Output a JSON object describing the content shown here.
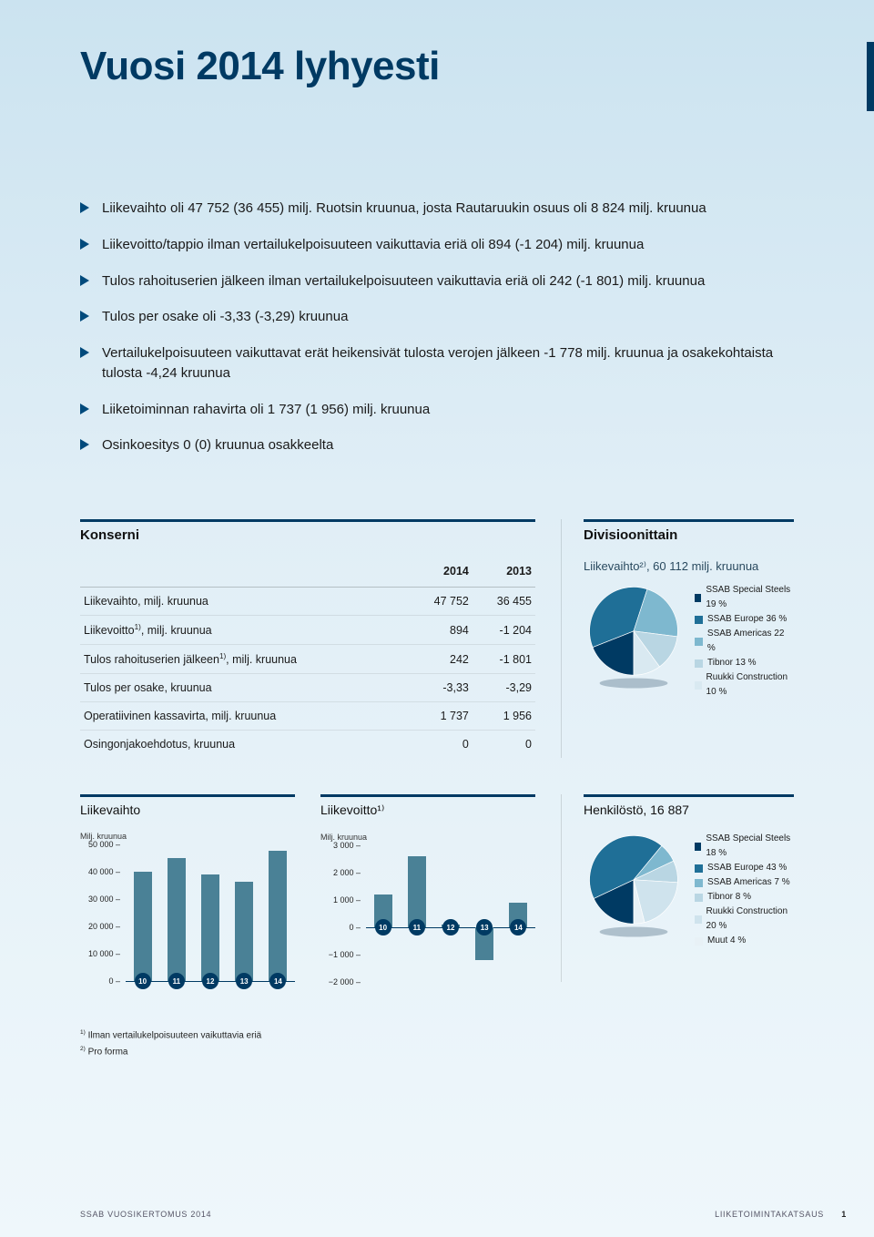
{
  "title": "Vuosi 2014 lyhyesti",
  "bullets": [
    "Liikevaihto oli 47 752 (36 455) milj. Ruotsin kruunua, josta Rautaruukin osuus oli 8 824 milj. kruunua",
    "Liikevoitto/tappio ilman vertailukelpoisuuteen vaikuttavia eriä oli 894 (-1 204) milj. kruunua",
    "Tulos rahoituserien jälkeen ilman vertailukelpoisuuteen vaikuttavia eriä oli 242 (-1 801) milj. kruunua",
    "Tulos per osake oli -3,33 (-3,29) kruunua",
    "Vertailukelpoisuuteen vaikuttavat erät heikensivät tulosta verojen jälkeen -1 778 milj. kruunua ja osakekohtaista tulosta -4,24 kruunua",
    "Liiketoiminnan rahavirta oli 1 737 (1 956) milj. kruunua",
    "Osinkoesitys 0 (0) kruunua osakkeelta"
  ],
  "table": {
    "heading": "Konserni",
    "col1": "2014",
    "col2": "2013",
    "rows": [
      {
        "label": "Liikevaihto, milj. kruunua",
        "v1": "47 752",
        "v2": "36 455"
      },
      {
        "label": "Liikevoitto<sup>1)</sup>, milj. kruunua",
        "v1": "894",
        "v2": "-1 204"
      },
      {
        "label": "Tulos rahoituserien jälkeen<sup>1)</sup>, milj. kruunua",
        "v1": "242",
        "v2": "-1 801"
      },
      {
        "label": "Tulos per osake, kruunua",
        "v1": "-3,33",
        "v2": "-3,29"
      },
      {
        "label": "Operatiivinen kassavirta, milj. kruunua",
        "v1": "1 737",
        "v2": "1 956"
      },
      {
        "label": "Osingonjakoehdotus, kruunua",
        "v1": "0",
        "v2": "0"
      }
    ]
  },
  "divisions": {
    "heading": "Divisioonittain",
    "subhead": "Liikevaihto²⁾, 60 112 milj. kruunua",
    "slices": [
      {
        "label": "SSAB Special Steels 19 %",
        "value": 19,
        "color": "#003a63"
      },
      {
        "label": "SSAB Europe 36 %",
        "value": 36,
        "color": "#1f6f97"
      },
      {
        "label": "SSAB Americas 22 %",
        "value": 22,
        "color": "#7eb8cf"
      },
      {
        "label": "Tibnor 13 %",
        "value": 13,
        "color": "#b9d6e3"
      },
      {
        "label": "Ruukki Construction 10 %",
        "value": 10,
        "color": "#d9e9f1"
      }
    ]
  },
  "chart1": {
    "title": "Liikevaihto",
    "unit": "Milj. kruunua",
    "ymin": 0,
    "ymax": 50000,
    "ystep": 10000,
    "years": [
      "10",
      "11",
      "12",
      "13",
      "14"
    ],
    "values": [
      40000,
      45000,
      39000,
      36455,
      47752
    ],
    "bar_color": "#4a8196",
    "baseline_value": 0
  },
  "chart2": {
    "title": "Liikevoitto¹⁾",
    "unit": "Milj. kruunua",
    "ymin": -2000,
    "ymax": 3000,
    "ystep": 1000,
    "years": [
      "10",
      "11",
      "12",
      "13",
      "14"
    ],
    "values": [
      1200,
      2600,
      100,
      -1204,
      894
    ],
    "bar_color": "#4a8196",
    "baseline_value": 0
  },
  "staff": {
    "title": "Henkilöstö, 16 887",
    "slices": [
      {
        "label": "SSAB Special Steels 18 %",
        "value": 18,
        "color": "#003a63"
      },
      {
        "label": "SSAB Europe 43 %",
        "value": 43,
        "color": "#1f6f97"
      },
      {
        "label": "SSAB Americas 7 %",
        "value": 7,
        "color": "#7eb8cf"
      },
      {
        "label": "Tibnor 8 %",
        "value": 8,
        "color": "#b9d6e3"
      },
      {
        "label": "Ruukki Construction 20 %",
        "value": 20,
        "color": "#cfe3ed"
      },
      {
        "label": "Muut 4 %",
        "value": 4,
        "color": "#e8f1f6"
      }
    ]
  },
  "footnotes": {
    "f1": "Ilman vertailukelpoisuuteen vaikuttavia eriä",
    "f2": "Pro forma"
  },
  "footer": {
    "left": "SSAB VUOSIKERTOMUS 2014",
    "right": "LIIKETOIMINTAKATSAUS",
    "page": "1"
  }
}
